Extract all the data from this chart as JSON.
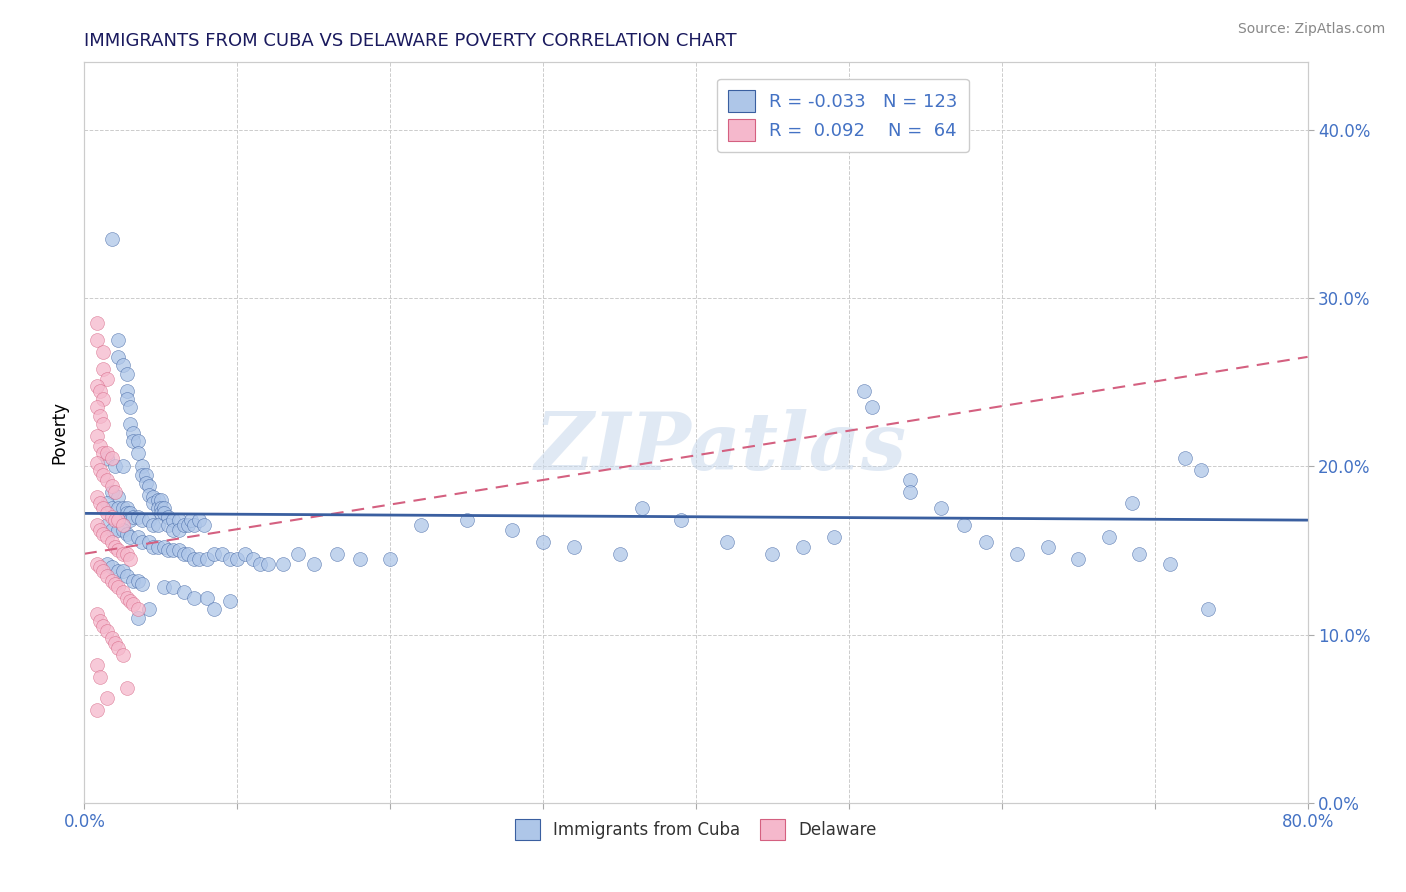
{
  "title": "IMMIGRANTS FROM CUBA VS DELAWARE POVERTY CORRELATION CHART",
  "source": "Source: ZipAtlas.com",
  "ylabel": "Poverty",
  "legend_label1": "Immigrants from Cuba",
  "legend_label2": "Delaware",
  "r1": "-0.033",
  "n1": 123,
  "r2": "0.092",
  "n2": 64,
  "color_blue_fill": "#aec6e8",
  "color_pink_fill": "#f5b8cc",
  "color_line_blue": "#3a5fa0",
  "color_line_pink": "#d46080",
  "watermark": "ZIPatlas",
  "xlim": [
    0.0,
    0.8
  ],
  "ylim": [
    0.0,
    0.44
  ],
  "blue_line_y0": 0.172,
  "blue_line_y1": 0.168,
  "pink_line_y0": 0.148,
  "pink_line_y1": 0.265,
  "blue_points": [
    [
      0.018,
      0.335
    ],
    [
      0.022,
      0.275
    ],
    [
      0.022,
      0.265
    ],
    [
      0.025,
      0.26
    ],
    [
      0.028,
      0.255
    ],
    [
      0.028,
      0.245
    ],
    [
      0.028,
      0.24
    ],
    [
      0.03,
      0.235
    ],
    [
      0.03,
      0.225
    ],
    [
      0.032,
      0.22
    ],
    [
      0.032,
      0.215
    ],
    [
      0.035,
      0.215
    ],
    [
      0.035,
      0.208
    ],
    [
      0.015,
      0.205
    ],
    [
      0.02,
      0.2
    ],
    [
      0.025,
      0.2
    ],
    [
      0.038,
      0.2
    ],
    [
      0.038,
      0.195
    ],
    [
      0.04,
      0.195
    ],
    [
      0.04,
      0.19
    ],
    [
      0.042,
      0.188
    ],
    [
      0.042,
      0.183
    ],
    [
      0.018,
      0.185
    ],
    [
      0.022,
      0.182
    ],
    [
      0.045,
      0.182
    ],
    [
      0.045,
      0.178
    ],
    [
      0.048,
      0.18
    ],
    [
      0.048,
      0.175
    ],
    [
      0.05,
      0.18
    ],
    [
      0.05,
      0.175
    ],
    [
      0.05,
      0.172
    ],
    [
      0.015,
      0.178
    ],
    [
      0.018,
      0.175
    ],
    [
      0.022,
      0.175
    ],
    [
      0.025,
      0.175
    ],
    [
      0.028,
      0.175
    ],
    [
      0.028,
      0.172
    ],
    [
      0.03,
      0.172
    ],
    [
      0.03,
      0.168
    ],
    [
      0.032,
      0.17
    ],
    [
      0.035,
      0.17
    ],
    [
      0.038,
      0.168
    ],
    [
      0.042,
      0.168
    ],
    [
      0.045,
      0.165
    ],
    [
      0.048,
      0.165
    ],
    [
      0.052,
      0.175
    ],
    [
      0.052,
      0.172
    ],
    [
      0.055,
      0.17
    ],
    [
      0.055,
      0.165
    ],
    [
      0.058,
      0.168
    ],
    [
      0.058,
      0.162
    ],
    [
      0.062,
      0.168
    ],
    [
      0.062,
      0.162
    ],
    [
      0.065,
      0.165
    ],
    [
      0.068,
      0.165
    ],
    [
      0.07,
      0.168
    ],
    [
      0.072,
      0.165
    ],
    [
      0.075,
      0.168
    ],
    [
      0.078,
      0.165
    ],
    [
      0.015,
      0.165
    ],
    [
      0.018,
      0.162
    ],
    [
      0.022,
      0.162
    ],
    [
      0.025,
      0.162
    ],
    [
      0.028,
      0.16
    ],
    [
      0.03,
      0.158
    ],
    [
      0.035,
      0.158
    ],
    [
      0.038,
      0.155
    ],
    [
      0.042,
      0.155
    ],
    [
      0.045,
      0.152
    ],
    [
      0.048,
      0.152
    ],
    [
      0.052,
      0.152
    ],
    [
      0.055,
      0.15
    ],
    [
      0.058,
      0.15
    ],
    [
      0.062,
      0.15
    ],
    [
      0.065,
      0.148
    ],
    [
      0.068,
      0.148
    ],
    [
      0.072,
      0.145
    ],
    [
      0.075,
      0.145
    ],
    [
      0.08,
      0.145
    ],
    [
      0.085,
      0.148
    ],
    [
      0.09,
      0.148
    ],
    [
      0.095,
      0.145
    ],
    [
      0.1,
      0.145
    ],
    [
      0.105,
      0.148
    ],
    [
      0.11,
      0.145
    ],
    [
      0.115,
      0.142
    ],
    [
      0.12,
      0.142
    ],
    [
      0.015,
      0.142
    ],
    [
      0.018,
      0.14
    ],
    [
      0.022,
      0.138
    ],
    [
      0.025,
      0.138
    ],
    [
      0.028,
      0.135
    ],
    [
      0.032,
      0.132
    ],
    [
      0.035,
      0.132
    ],
    [
      0.038,
      0.13
    ],
    [
      0.052,
      0.128
    ],
    [
      0.058,
      0.128
    ],
    [
      0.065,
      0.125
    ],
    [
      0.072,
      0.122
    ],
    [
      0.08,
      0.122
    ],
    [
      0.095,
      0.12
    ],
    [
      0.085,
      0.115
    ],
    [
      0.035,
      0.11
    ],
    [
      0.042,
      0.115
    ],
    [
      0.13,
      0.142
    ],
    [
      0.14,
      0.148
    ],
    [
      0.15,
      0.142
    ],
    [
      0.165,
      0.148
    ],
    [
      0.18,
      0.145
    ],
    [
      0.2,
      0.145
    ],
    [
      0.22,
      0.165
    ],
    [
      0.25,
      0.168
    ],
    [
      0.28,
      0.162
    ],
    [
      0.3,
      0.155
    ],
    [
      0.32,
      0.152
    ],
    [
      0.35,
      0.148
    ],
    [
      0.365,
      0.175
    ],
    [
      0.39,
      0.168
    ],
    [
      0.42,
      0.155
    ],
    [
      0.45,
      0.148
    ],
    [
      0.47,
      0.152
    ],
    [
      0.49,
      0.158
    ],
    [
      0.51,
      0.245
    ],
    [
      0.515,
      0.235
    ],
    [
      0.54,
      0.192
    ],
    [
      0.54,
      0.185
    ],
    [
      0.56,
      0.175
    ],
    [
      0.575,
      0.165
    ],
    [
      0.59,
      0.155
    ],
    [
      0.61,
      0.148
    ],
    [
      0.63,
      0.152
    ],
    [
      0.65,
      0.145
    ],
    [
      0.67,
      0.158
    ],
    [
      0.69,
      0.148
    ],
    [
      0.71,
      0.142
    ],
    [
      0.735,
      0.115
    ],
    [
      0.685,
      0.178
    ],
    [
      0.72,
      0.205
    ],
    [
      0.73,
      0.198
    ]
  ],
  "pink_points": [
    [
      0.008,
      0.285
    ],
    [
      0.008,
      0.275
    ],
    [
      0.012,
      0.268
    ],
    [
      0.012,
      0.258
    ],
    [
      0.015,
      0.252
    ],
    [
      0.008,
      0.248
    ],
    [
      0.01,
      0.245
    ],
    [
      0.012,
      0.24
    ],
    [
      0.008,
      0.235
    ],
    [
      0.01,
      0.23
    ],
    [
      0.012,
      0.225
    ],
    [
      0.008,
      0.218
    ],
    [
      0.01,
      0.212
    ],
    [
      0.012,
      0.208
    ],
    [
      0.015,
      0.208
    ],
    [
      0.018,
      0.205
    ],
    [
      0.008,
      0.202
    ],
    [
      0.01,
      0.198
    ],
    [
      0.012,
      0.195
    ],
    [
      0.015,
      0.192
    ],
    [
      0.018,
      0.188
    ],
    [
      0.02,
      0.185
    ],
    [
      0.008,
      0.182
    ],
    [
      0.01,
      0.178
    ],
    [
      0.012,
      0.175
    ],
    [
      0.015,
      0.172
    ],
    [
      0.018,
      0.17
    ],
    [
      0.02,
      0.168
    ],
    [
      0.022,
      0.168
    ],
    [
      0.025,
      0.165
    ],
    [
      0.008,
      0.165
    ],
    [
      0.01,
      0.162
    ],
    [
      0.012,
      0.16
    ],
    [
      0.015,
      0.158
    ],
    [
      0.018,
      0.155
    ],
    [
      0.02,
      0.152
    ],
    [
      0.022,
      0.15
    ],
    [
      0.025,
      0.148
    ],
    [
      0.028,
      0.148
    ],
    [
      0.03,
      0.145
    ],
    [
      0.008,
      0.142
    ],
    [
      0.01,
      0.14
    ],
    [
      0.012,
      0.138
    ],
    [
      0.015,
      0.135
    ],
    [
      0.018,
      0.132
    ],
    [
      0.02,
      0.13
    ],
    [
      0.022,
      0.128
    ],
    [
      0.025,
      0.125
    ],
    [
      0.028,
      0.122
    ],
    [
      0.03,
      0.12
    ],
    [
      0.032,
      0.118
    ],
    [
      0.035,
      0.115
    ],
    [
      0.008,
      0.112
    ],
    [
      0.01,
      0.108
    ],
    [
      0.012,
      0.105
    ],
    [
      0.015,
      0.102
    ],
    [
      0.018,
      0.098
    ],
    [
      0.02,
      0.095
    ],
    [
      0.022,
      0.092
    ],
    [
      0.025,
      0.088
    ],
    [
      0.008,
      0.082
    ],
    [
      0.01,
      0.075
    ],
    [
      0.028,
      0.068
    ],
    [
      0.015,
      0.062
    ],
    [
      0.008,
      0.055
    ]
  ]
}
